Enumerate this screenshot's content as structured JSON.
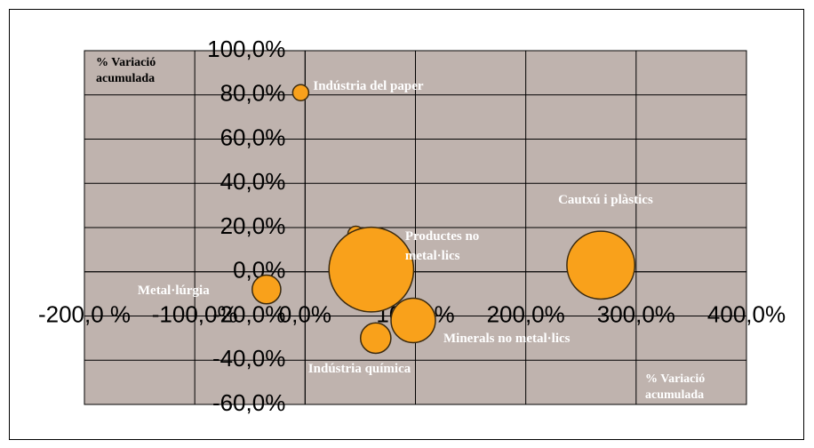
{
  "chart_data": {
    "type": "bubble",
    "x_label": "% Variació acumulada",
    "y_label": "% Variació acumulada",
    "xlim": [
      -200,
      400
    ],
    "ylim": [
      -60,
      100
    ],
    "xticks": [
      {
        "value": -200,
        "label": "-200,0 %"
      },
      {
        "value": -100,
        "label": "-100,0%"
      },
      {
        "value": 0,
        "label": "0,0%"
      },
      {
        "value": 100,
        "label": "100,0%"
      },
      {
        "value": 200,
        "label": "200,0%"
      },
      {
        "value": 300,
        "label": "300,0%"
      },
      {
        "value": 400,
        "label": "400,0%"
      }
    ],
    "yticks": [
      {
        "value": -60,
        "label": "-60,0%"
      },
      {
        "value": -40,
        "label": "-40,0%"
      },
      {
        "value": -20,
        "label": "-20,0%"
      },
      {
        "value": 0,
        "label": "0,0%"
      },
      {
        "value": 20,
        "label": "20,0%"
      },
      {
        "value": 40,
        "label": "40,0%"
      },
      {
        "value": 60,
        "label": "60,0%"
      },
      {
        "value": 80,
        "label": "80,0%"
      },
      {
        "value": 100,
        "label": "100,0%"
      }
    ],
    "grid": true,
    "color": "#f9a11b",
    "x": [
      -4,
      46,
      60,
      268,
      -35,
      98,
      64
    ],
    "values": [
      81,
      17,
      1,
      3,
      -8,
      -22,
      -30
    ],
    "sizes": [
      1,
      1,
      28,
      18,
      3.2,
      7.7,
      3.6
    ],
    "labels": [
      "Indústria del paper",
      null,
      "Productes  no metal·lics",
      "Cautxú i plàstics",
      "Metal·lúrgia",
      "Minerals no metal·lics",
      "Indústria química"
    ]
  }
}
